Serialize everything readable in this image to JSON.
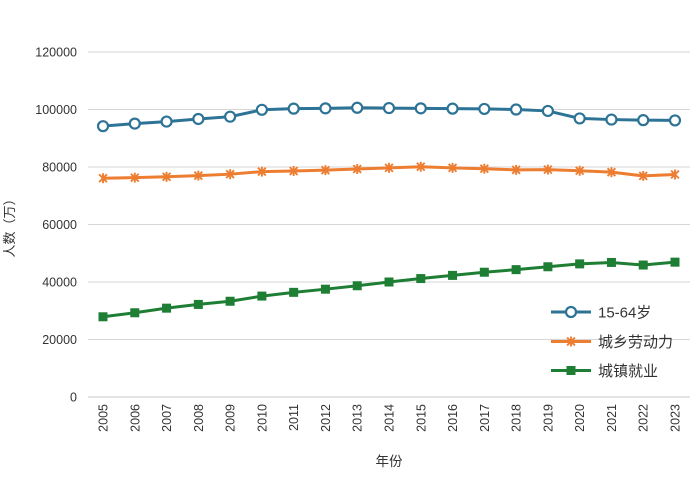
{
  "chart_data": {
    "type": "line",
    "title": "",
    "xlabel": "年份",
    "ylabel": "人数（万）",
    "ylim": [
      0,
      120000
    ],
    "ytick_step": 20000,
    "ytick_labels": [
      "0",
      "20000",
      "40000",
      "60000",
      "80000",
      "100000",
      "120000"
    ],
    "grid": "horizontal-only",
    "gridline_color": "#d6d6d6",
    "axis_text_color": "#333333",
    "legend_position": "inside-right-bottom",
    "categories": [
      "2005",
      "2006",
      "2007",
      "2008",
      "2009",
      "2010",
      "2011",
      "2012",
      "2013",
      "2014",
      "2015",
      "2016",
      "2017",
      "2018",
      "2019",
      "2020",
      "2021",
      "2022",
      "2023"
    ],
    "series": [
      {
        "name": "15-64岁",
        "color": "#2d7396",
        "marker": "circle-open",
        "values": [
          94200,
          95100,
          95800,
          96700,
          97500,
          99900,
          100300,
          100400,
          100600,
          100500,
          100400,
          100300,
          100200,
          100000,
          99500,
          96900,
          96500,
          96300,
          96200
        ]
      },
      {
        "name": "城乡劳动力",
        "color": "#ed7d31",
        "marker": "asterisk",
        "values": [
          76100,
          76300,
          76600,
          77000,
          77500,
          78400,
          78600,
          78900,
          79300,
          79700,
          80100,
          79700,
          79400,
          79000,
          79100,
          78700,
          78200,
          76900,
          77400
        ]
      },
      {
        "name": "城镇就业",
        "color": "#1e7e34",
        "marker": "square",
        "values": [
          27900,
          29300,
          30900,
          32200,
          33300,
          35100,
          36400,
          37500,
          38700,
          40000,
          41200,
          42300,
          43400,
          44300,
          45300,
          46300,
          46800,
          45900,
          46900
        ]
      }
    ]
  }
}
